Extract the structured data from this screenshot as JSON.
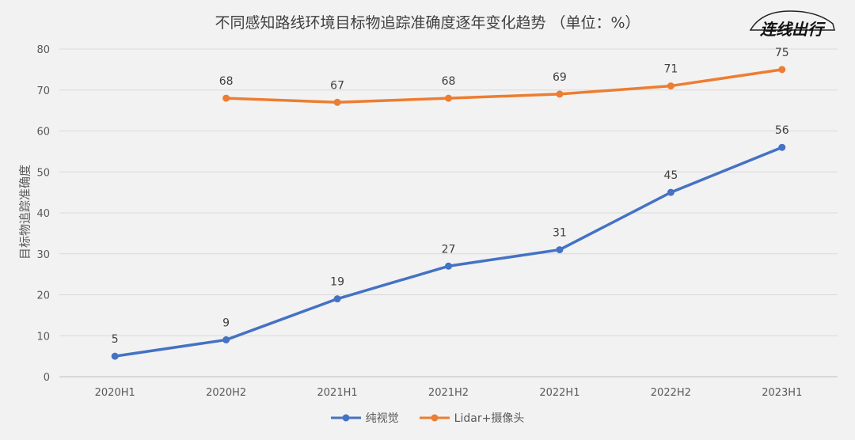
{
  "chart_data": {
    "type": "line",
    "title": "不同感知路线环境目标物追踪准确度逐年变化趋势 （单位：%）",
    "xlabel": "",
    "ylabel": "目标物追踪准确度",
    "categories": [
      "2020H1",
      "2020H2",
      "2021H1",
      "2021H2",
      "2022H1",
      "2022H2",
      "2023H1"
    ],
    "ylim": [
      0,
      80
    ],
    "yticks": [
      0,
      10,
      20,
      30,
      40,
      50,
      60,
      70,
      80
    ],
    "grid": true,
    "legend_position": "bottom",
    "series": [
      {
        "name": "纯视觉",
        "color": "#4472c4",
        "values": [
          5,
          9,
          19,
          27,
          31,
          45,
          56
        ]
      },
      {
        "name": "Lidar+摄像头",
        "color": "#ed7d31",
        "values": [
          null,
          68,
          67,
          68,
          69,
          71,
          75
        ]
      }
    ]
  },
  "logo": {
    "text": "连线出行"
  }
}
